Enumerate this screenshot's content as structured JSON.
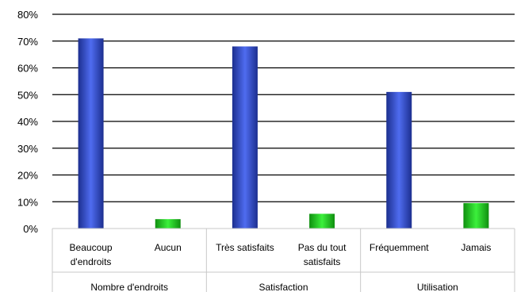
{
  "chart_data": {
    "type": "bar",
    "groups": [
      {
        "label": "Nombre d'endroits",
        "categories": [
          "Beaucoup d'endroits",
          "Aucun"
        ]
      },
      {
        "label": "Satisfaction",
        "categories": [
          "Très satisfaits",
          "Pas du tout satisfaits"
        ]
      },
      {
        "label": "Utilisation",
        "categories": [
          "Fréquemment",
          "Jamais"
        ]
      }
    ],
    "category_lines": [
      [
        "Beaucoup",
        "d'endroits"
      ],
      [
        "Aucun"
      ],
      [
        "Très satisfaits"
      ],
      [
        "Pas du tout",
        "satisfaits"
      ],
      [
        "Fréquemment"
      ],
      [
        "Jamais"
      ]
    ],
    "values": [
      71,
      3.5,
      68,
      5.5,
      51,
      9.5
    ],
    "bar_colors": [
      "blue",
      "green",
      "blue",
      "green",
      "blue",
      "green"
    ],
    "yticks": [
      "0%",
      "10%",
      "20%",
      "30%",
      "40%",
      "50%",
      "60%",
      "70%",
      "80%"
    ],
    "ylim": [
      0,
      80
    ],
    "grid": true
  },
  "colors": {
    "blue_dark": "#1c2f8f",
    "blue_light": "#4f6cf0",
    "green_dark": "#0f8f0f",
    "green_light": "#3cf03c",
    "grid": "#000000"
  }
}
